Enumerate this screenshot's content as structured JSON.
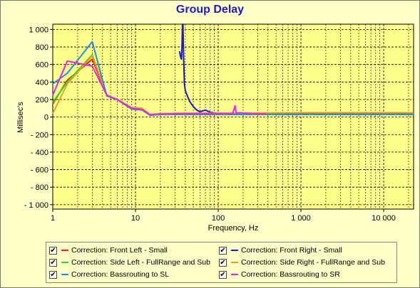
{
  "window": {
    "title": "Group Delay"
  },
  "chart_data": {
    "type": "line",
    "title": "Group Delay",
    "xlabel": "Frequency, Hz",
    "ylabel": "Millisec's",
    "xscale": "log",
    "xlim": [
      1,
      23000
    ],
    "ylim": [
      -1050,
      1060
    ],
    "x_ticks": [
      {
        "value": 1,
        "label": "1"
      },
      {
        "value": 10,
        "label": "10"
      },
      {
        "value": 100,
        "label": "100"
      },
      {
        "value": 1000,
        "label": "1 000"
      },
      {
        "value": 10000,
        "label": "10 000"
      }
    ],
    "y_ticks": [
      {
        "value": 1000,
        "label": "1 000"
      },
      {
        "value": 800,
        "label": "800"
      },
      {
        "value": 600,
        "label": "600"
      },
      {
        "value": 400,
        "label": "400"
      },
      {
        "value": 200,
        "label": "200"
      },
      {
        "value": 0,
        "label": "0"
      },
      {
        "value": -200,
        "label": "- 200"
      },
      {
        "value": -400,
        "label": "- 400"
      },
      {
        "value": -600,
        "label": "- 600"
      },
      {
        "value": -800,
        "label": "- 800"
      },
      {
        "value": -1000,
        "label": "- 1 000"
      }
    ],
    "grid": true,
    "legend_position": "bottom",
    "series": [
      {
        "name": "Correction: Front Left - Small",
        "color": "#ff1a1a",
        "checked": true,
        "x": [
          1,
          1.5,
          3,
          4.5,
          6,
          9,
          12,
          15,
          20,
          40,
          100,
          1000,
          23000
        ],
        "y": [
          150,
          420,
          660,
          250,
          200,
          100,
          90,
          20,
          35,
          40,
          40,
          40,
          40
        ]
      },
      {
        "name": "Correction: Front Right - Small",
        "color": "#1a1acc",
        "checked": true,
        "x": [
          34,
          35,
          36,
          36.5,
          37,
          37.5,
          38,
          39,
          40,
          45,
          50,
          55,
          60,
          70,
          80,
          100
        ],
        "y": [
          750,
          690,
          660,
          800,
          1050,
          1060,
          750,
          380,
          300,
          180,
          120,
          80,
          60,
          80,
          55,
          40
        ]
      },
      {
        "name": "Correction: Side Left - FullRange and Sub",
        "color": "#22dd22",
        "checked": true,
        "x": [
          1,
          1.5,
          3,
          4.5,
          6,
          9,
          12,
          15,
          20,
          40,
          100,
          1000,
          23000
        ],
        "y": [
          170,
          400,
          710,
          250,
          200,
          100,
          90,
          20,
          30,
          30,
          30,
          30,
          30
        ]
      },
      {
        "name": "Correction: Side Right - FullRange and Sub",
        "color": "#e69f1a",
        "checked": true,
        "x": [
          1,
          1.5,
          3,
          4.5,
          6,
          9,
          12,
          15,
          20,
          40,
          100,
          1000,
          23000
        ],
        "y": [
          40,
          380,
          700,
          250,
          200,
          110,
          100,
          30,
          40,
          45,
          45,
          50,
          50
        ]
      },
      {
        "name": "Correction: Bassrouting to SL",
        "color": "#1a90e6",
        "checked": true,
        "x": [
          1,
          1.5,
          3,
          4.5,
          6,
          9,
          12,
          15,
          20,
          40,
          100,
          1000,
          23000
        ],
        "y": [
          380,
          500,
          860,
          240,
          200,
          90,
          80,
          20,
          30,
          30,
          30,
          30,
          30
        ]
      },
      {
        "name": "Correction: Bassrouting to SR",
        "color": "#ee22ee",
        "checked": true,
        "x": [
          1,
          1.5,
          3,
          4.5,
          6,
          9,
          12,
          15,
          20,
          40,
          100,
          150,
          160,
          165,
          180,
          250,
          380
        ],
        "y": [
          250,
          640,
          580,
          250,
          200,
          100,
          85,
          25,
          35,
          40,
          40,
          40,
          130,
          45,
          50,
          40,
          35
        ]
      }
    ]
  }
}
